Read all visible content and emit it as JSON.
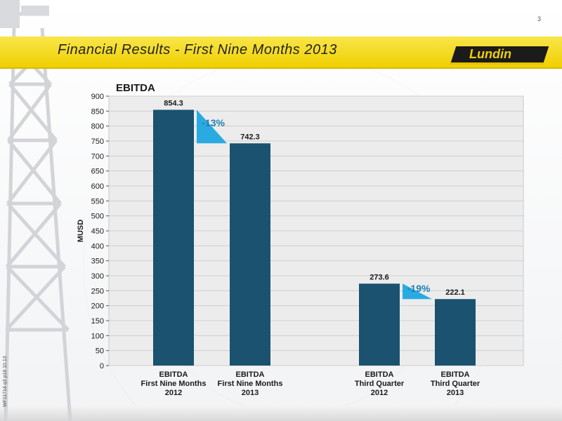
{
  "page": {
    "number": "3",
    "title": "Financial Results - First Nine Months 2013",
    "logo_text": "Lundin",
    "doc_id": "WF11714 q3 p18 10.13"
  },
  "colors": {
    "bar": "#1a5270",
    "triangle": "#29abe2",
    "banner": "#f4dd1e",
    "percent_text": "#1f7fb3"
  },
  "chart_data": {
    "type": "bar",
    "title": "EBITDA",
    "ylabel": "MUSD",
    "xlabel": "",
    "ylim": [
      0,
      900
    ],
    "yticks": [
      0,
      50,
      100,
      150,
      200,
      250,
      300,
      350,
      400,
      450,
      500,
      550,
      600,
      650,
      700,
      750,
      800,
      850,
      900
    ],
    "grid": true,
    "categories": [
      [
        "EBITDA",
        "First Nine Months",
        "2012"
      ],
      [
        "EBITDA",
        "First Nine Months",
        "2013"
      ],
      [
        "EBITDA",
        "Third Quarter",
        "2012"
      ],
      [
        "EBITDA",
        "Third Quarter",
        "2013"
      ]
    ],
    "values": [
      854.3,
      742.3,
      273.6,
      222.1
    ],
    "value_labels": [
      "854.3",
      "742.3",
      "273.6",
      "222.1"
    ],
    "annotations": [
      {
        "from": 0,
        "to": 1,
        "text": "-13%"
      },
      {
        "from": 2,
        "to": 3,
        "text": "-19%"
      }
    ]
  }
}
